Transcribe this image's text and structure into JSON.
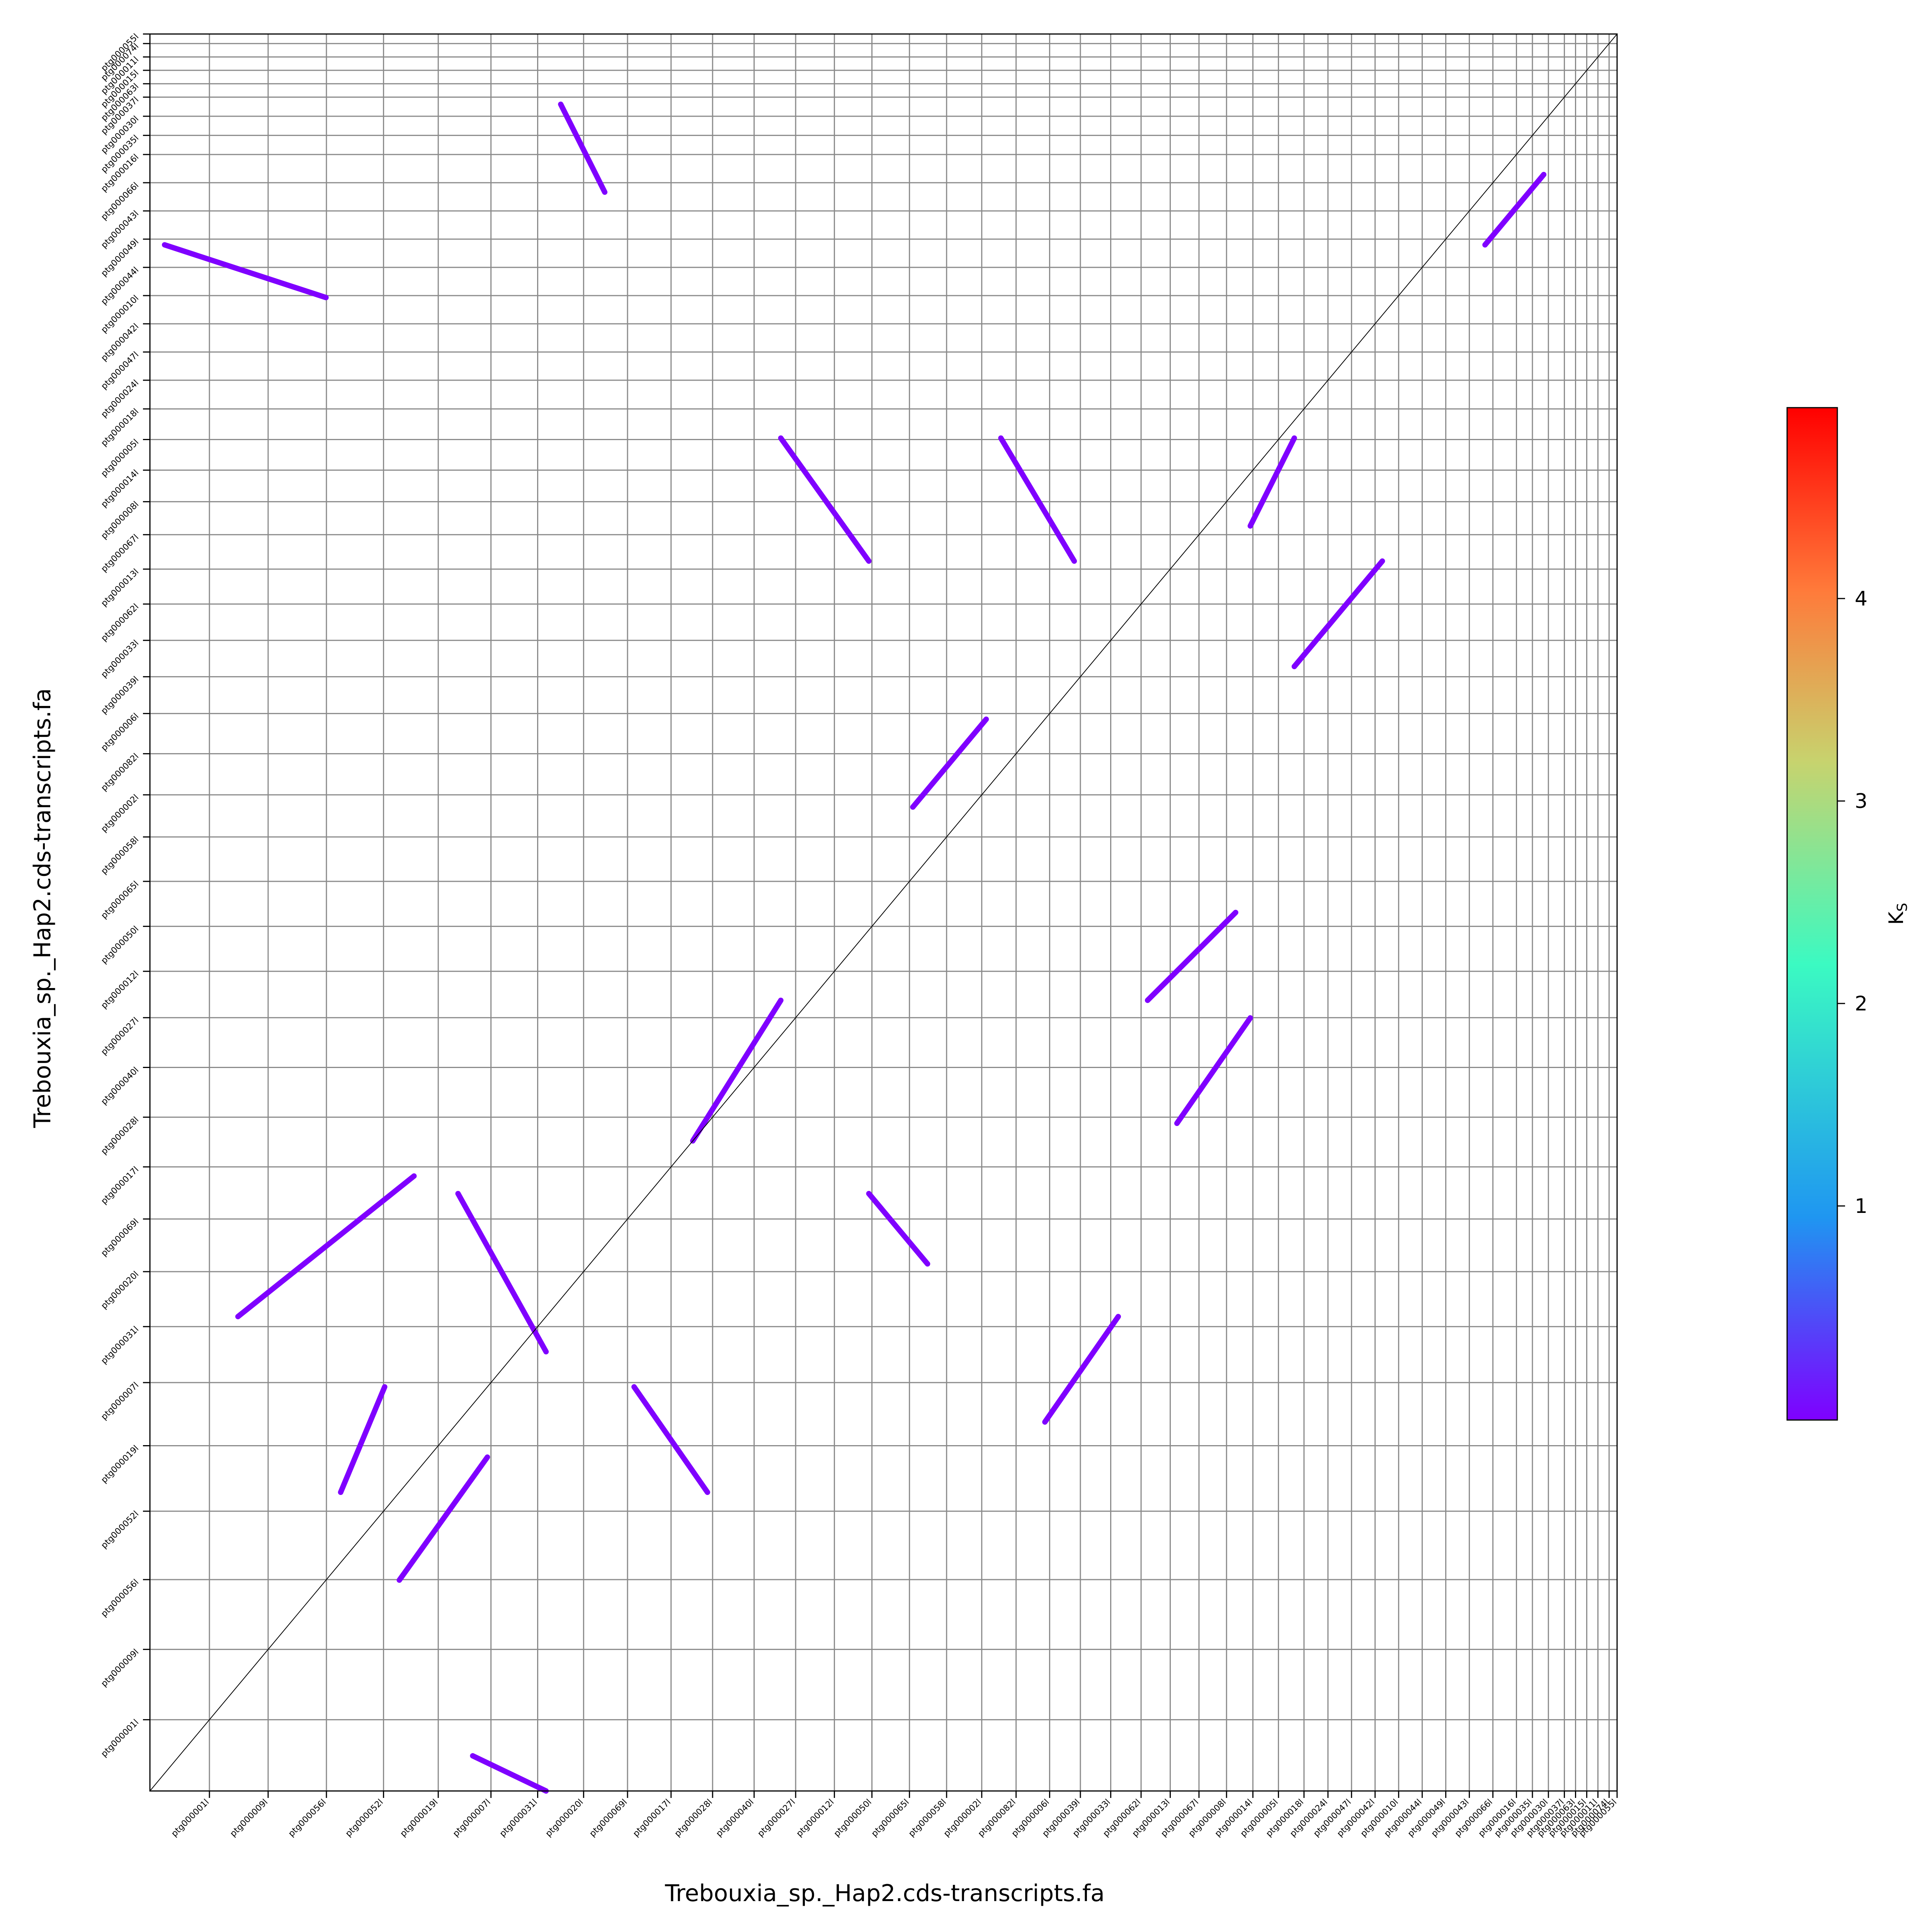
{
  "chart_data": {
    "type": "scatter",
    "subtype": "dot plot (synteny) with Ks color scale",
    "xlabel": "Trebouxia_sp._Hap2.cds-transcripts.fa",
    "ylabel": "Trebouxia_sp._Hap2.cds-transcripts.fa",
    "x_contigs": [
      "ptg000001l",
      "ptg000009l",
      "ptg000056l",
      "ptg000052l",
      "ptg000019l",
      "ptg000007l",
      "ptg000031l",
      "ptg000020l",
      "ptg000069l",
      "ptg000017l",
      "ptg000028l",
      "ptg000040l",
      "ptg000027l",
      "ptg000012l",
      "ptg000050l",
      "ptg000065l",
      "ptg000058l",
      "ptg000002l",
      "ptg000082l",
      "ptg000006l",
      "ptg000039l",
      "ptg000033l",
      "ptg000062l",
      "ptg000013l",
      "ptg000067l",
      "ptg000008l",
      "ptg000014l",
      "ptg000005l",
      "ptg000018l",
      "ptg000024l",
      "ptg000047l",
      "ptg000042l",
      "ptg000010l",
      "ptg000044l",
      "ptg000049l",
      "ptg000043l",
      "ptg000066l",
      "ptg000016l",
      "ptg000035l",
      "ptg000030l",
      "ptg000037l",
      "ptg000063l",
      "ptg000015l",
      "ptg000011l",
      "ptg000074l",
      "ptg000055l"
    ],
    "y_contigs": [
      "ptg000001l",
      "ptg000009l",
      "ptg000056l",
      "ptg000052l",
      "ptg000019l",
      "ptg000007l",
      "ptg000031l",
      "ptg000020l",
      "ptg000069l",
      "ptg000017l",
      "ptg000028l",
      "ptg000040l",
      "ptg000027l",
      "ptg000012l",
      "ptg000050l",
      "ptg000065l",
      "ptg000058l",
      "ptg000002l",
      "ptg000082l",
      "ptg000006l",
      "ptg000039l",
      "ptg000033l",
      "ptg000062l",
      "ptg000013l",
      "ptg000067l",
      "ptg000008l",
      "ptg000014l",
      "ptg000005l",
      "ptg000018l",
      "ptg000024l",
      "ptg000047l",
      "ptg000042l",
      "ptg000010l",
      "ptg000044l",
      "ptg000049l",
      "ptg000043l",
      "ptg000066l",
      "ptg000016l",
      "ptg000035l",
      "ptg000030l",
      "ptg000037l",
      "ptg000063l",
      "ptg000015l",
      "ptg000011l",
      "ptg000074l",
      "ptg000055l"
    ],
    "contig_lengths_relative": [
      149,
      147,
      146,
      143,
      137,
      132,
      117,
      115,
      110,
      109,
      104,
      104,
      104,
      97,
      94,
      94,
      93,
      88,
      86,
      84,
      77,
      76,
      76,
      73,
      72,
      69,
      66,
      64,
      64,
      60,
      59,
      59,
      59,
      59,
      59,
      59,
      59,
      59,
      40,
      40,
      40,
      28,
      28,
      28,
      28,
      20
    ],
    "colorbar": {
      "label": "K_S",
      "ticks": [
        1,
        2,
        3,
        4
      ],
      "range": [
        0,
        5
      ],
      "colormap": [
        "#7f00ff",
        "#1f96f1",
        "#3bfac2",
        "#c7d36e",
        "#ff7a3a",
        "#ff0000"
      ]
    },
    "diagonal": true,
    "grid": true,
    "segments": [
      {
        "x": [
          0,
          1.0
        ],
        "y": [
          0,
          1.0
        ],
        "ks": 0.1
      },
      {
        "x": [
          0.01,
          0.12
        ],
        "y": [
          0.88,
          0.85
        ],
        "ks": 0.1
      },
      {
        "x": [
          0.28,
          0.31
        ],
        "y": [
          0.96,
          0.91
        ],
        "ks": 0.1
      },
      {
        "x": [
          0.37,
          0.43
        ],
        "y": [
          0.37,
          0.45
        ],
        "ks": 0.1
      },
      {
        "x": [
          0.06,
          0.18
        ],
        "y": [
          0.27,
          0.35
        ],
        "ks": 0.1
      },
      {
        "x": [
          0.17,
          0.23
        ],
        "y": [
          0.12,
          0.19
        ],
        "ks": 0.1
      },
      {
        "x": [
          0.13,
          0.16
        ],
        "y": [
          0.17,
          0.23
        ],
        "ks": 0.1
      },
      {
        "x": [
          0.21,
          0.27
        ],
        "y": [
          0.34,
          0.25
        ],
        "ks": 0.1
      },
      {
        "x": [
          0.33,
          0.38
        ],
        "y": [
          0.23,
          0.17
        ],
        "ks": 0.1
      },
      {
        "x": [
          0.22,
          0.27
        ],
        "y": [
          0.02,
          0.0
        ],
        "ks": 0.1
      },
      {
        "x": [
          0.43,
          0.49
        ],
        "y": [
          0.77,
          0.7
        ],
        "ks": 0.1
      },
      {
        "x": [
          0.49,
          0.53
        ],
        "y": [
          0.34,
          0.3
        ],
        "ks": 0.1
      },
      {
        "x": [
          0.52,
          0.57
        ],
        "y": [
          0.56,
          0.61
        ],
        "ks": 0.1
      },
      {
        "x": [
          0.58,
          0.63
        ],
        "y": [
          0.77,
          0.7
        ],
        "ks": 0.1
      },
      {
        "x": [
          0.61,
          0.66
        ],
        "y": [
          0.21,
          0.27
        ],
        "ks": 0.1
      },
      {
        "x": [
          0.68,
          0.74
        ],
        "y": [
          0.45,
          0.5
        ],
        "ks": 0.1
      },
      {
        "x": [
          0.7,
          0.75
        ],
        "y": [
          0.38,
          0.44
        ],
        "ks": 0.1
      },
      {
        "x": [
          0.75,
          0.78
        ],
        "y": [
          0.72,
          0.77
        ],
        "ks": 0.1
      },
      {
        "x": [
          0.78,
          0.84
        ],
        "y": [
          0.64,
          0.7
        ],
        "ks": 0.1
      },
      {
        "x": [
          0.91,
          0.95
        ],
        "y": [
          0.88,
          0.92
        ],
        "ks": 0.1
      }
    ]
  }
}
